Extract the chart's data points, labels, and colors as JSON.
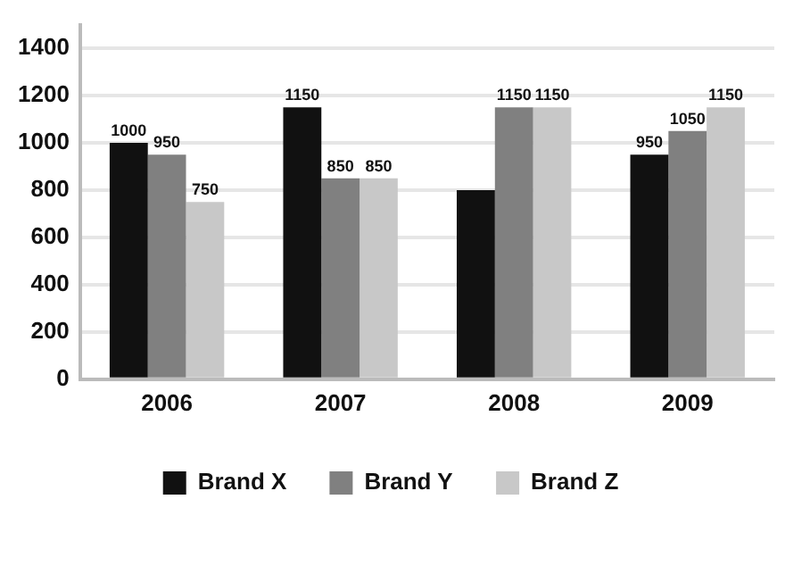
{
  "chart_data": {
    "type": "bar",
    "categories": [
      "2006",
      "2007",
      "2008",
      "2009"
    ],
    "series": [
      {
        "name": "Brand X",
        "color": "#111111",
        "values": [
          1000,
          1150,
          800,
          950
        ],
        "value_labels": [
          "1000",
          "1150",
          null,
          "950"
        ]
      },
      {
        "name": "Brand Y",
        "color": "#808080",
        "values": [
          950,
          850,
          1150,
          1050
        ],
        "value_labels": [
          "950",
          "850",
          "1150",
          "1050"
        ]
      },
      {
        "name": "Brand Z",
        "color": "#c8c8c8",
        "values": [
          750,
          850,
          1150,
          1150
        ],
        "value_labels": [
          "750",
          "850",
          "1150",
          "1150"
        ]
      }
    ],
    "ylim": [
      0,
      1500
    ],
    "yticks": [
      0,
      200,
      400,
      600,
      800,
      1000,
      1200,
      1400
    ],
    "grid": "y",
    "legend": "bottom"
  }
}
